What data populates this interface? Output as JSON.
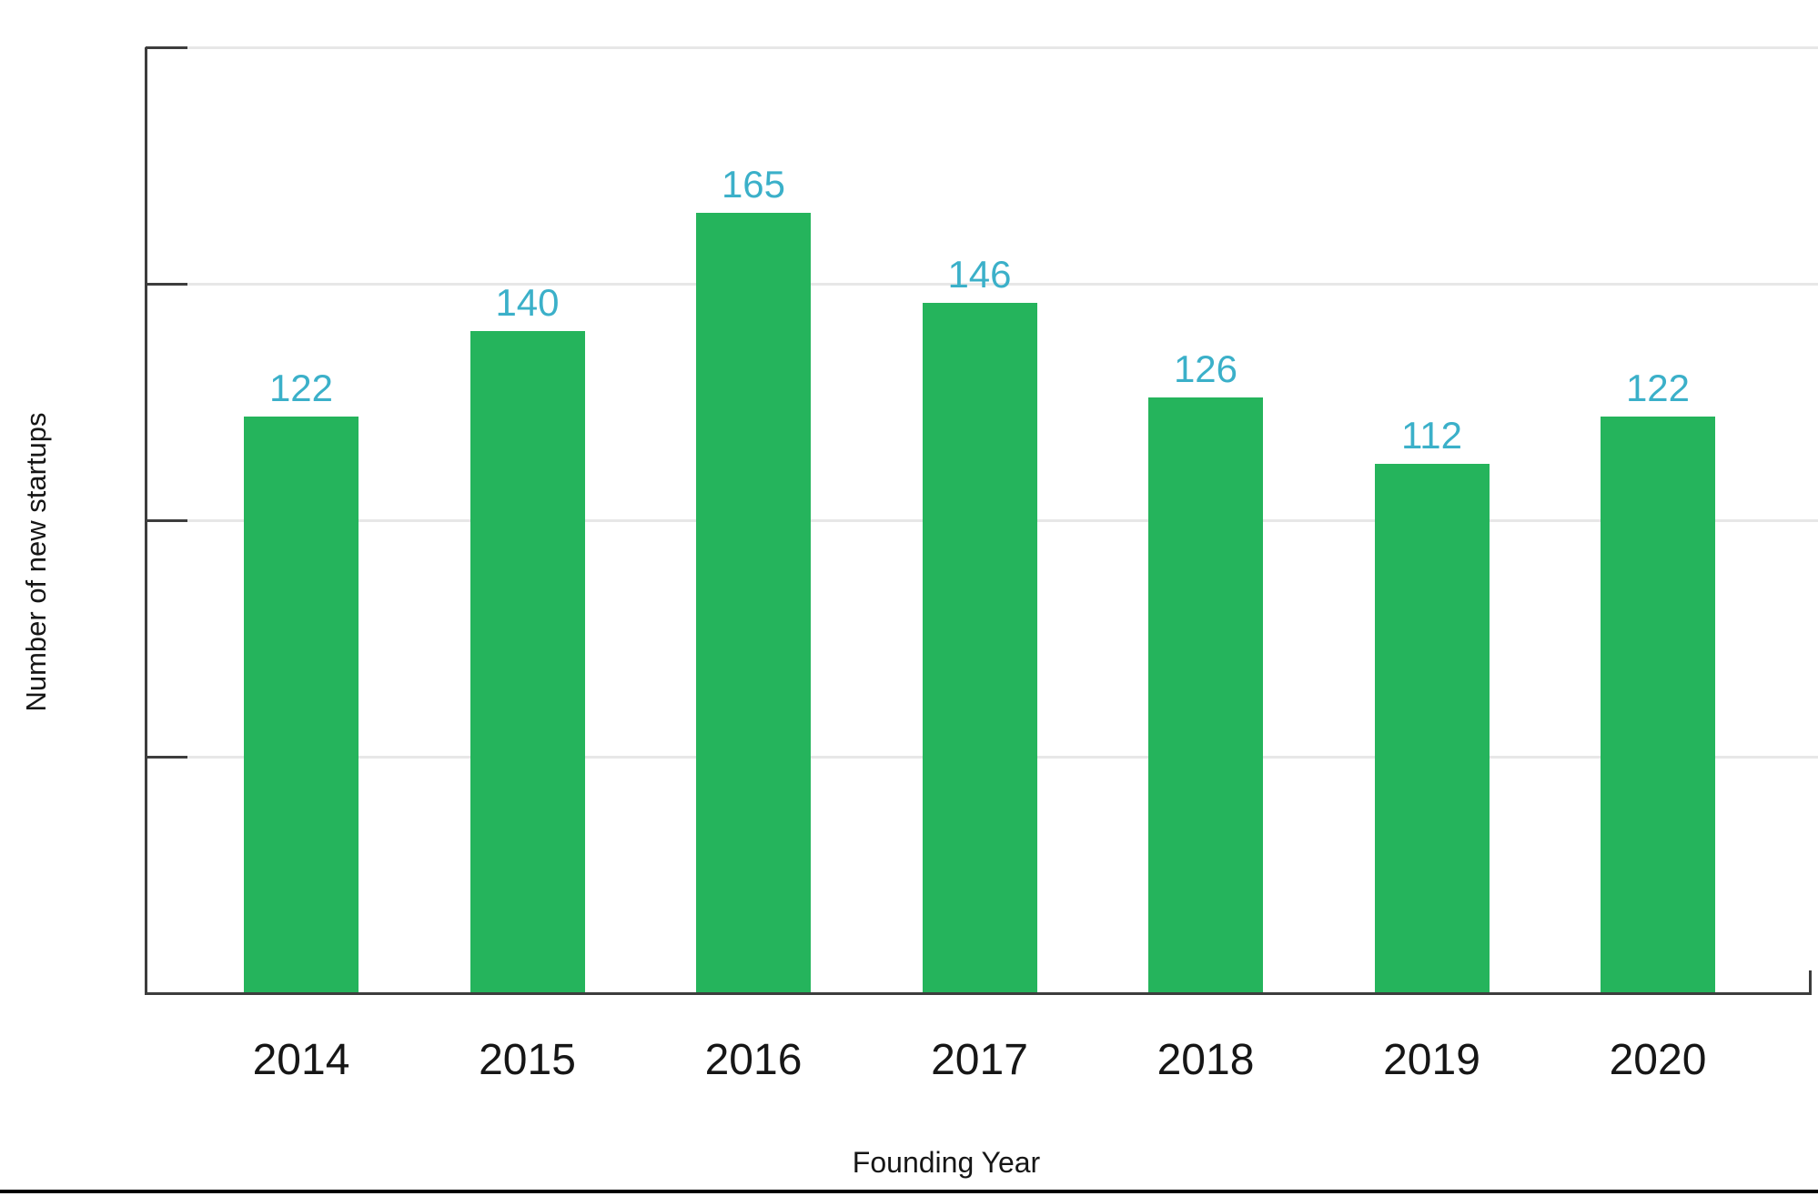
{
  "chart_data": {
    "type": "bar",
    "title": "",
    "categories": [
      "2014",
      "2015",
      "2016",
      "2017",
      "2018",
      "2019",
      "2020"
    ],
    "values": [
      122,
      140,
      165,
      146,
      126,
      112,
      122
    ],
    "xlabel": "Founding Year",
    "ylabel": "Number of new startups",
    "ylim": [
      0,
      200
    ],
    "ytick_interval": 50,
    "ytick_labels_shown": false,
    "grid": "horizontal",
    "legend": "none",
    "bar_color": "#25b45c",
    "value_label_color": "#3bb0c9",
    "axis_color": "#3d3d3d",
    "gridline_color": "#e7e7e7",
    "text_color": "#161616",
    "bottom_rule_color": "#000000"
  }
}
